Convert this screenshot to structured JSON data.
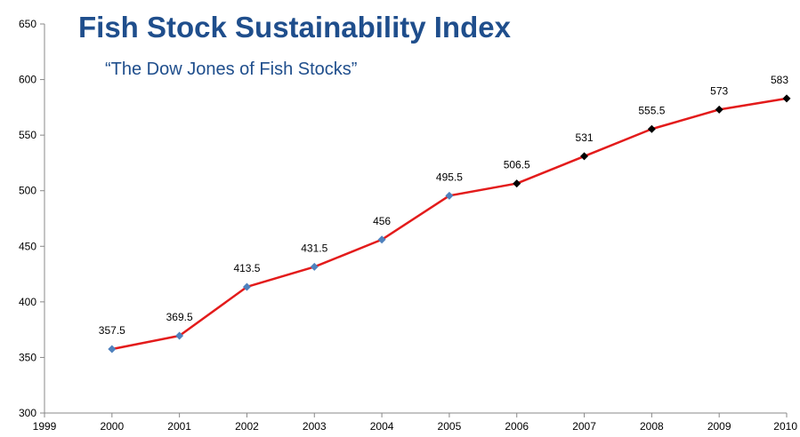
{
  "chart_data": {
    "type": "line",
    "title": "Fish Stock Sustainability Index",
    "subtitle": "“The Dow Jones of Fish Stocks”",
    "xlabel": "",
    "ylabel": "",
    "xlim": [
      1999,
      2010
    ],
    "ylim": [
      300,
      650
    ],
    "x_ticks": [
      "1999",
      "2000",
      "2001",
      "2002",
      "2003",
      "2004",
      "2005",
      "2006",
      "2007",
      "2008",
      "2009",
      "2010"
    ],
    "y_ticks": [
      "300",
      "350",
      "400",
      "450",
      "500",
      "550",
      "600",
      "650"
    ],
    "grid": false,
    "series": [
      {
        "x": [
          2000,
          2001,
          2002,
          2003,
          2004,
          2005,
          2006,
          2007,
          2008,
          2009,
          2010
        ],
        "values": [
          357.5,
          369.5,
          413.5,
          431.5,
          456,
          495.5,
          506.5,
          531,
          555.5,
          573,
          583
        ],
        "labels": [
          "357.5",
          "369.5",
          "413.5",
          "431.5",
          "456",
          "495.5",
          "506.5",
          "531",
          "555.5",
          "573",
          "583"
        ],
        "marker_colors": [
          "#4f81bd",
          "#4f81bd",
          "#4f81bd",
          "#4f81bd",
          "#4f81bd",
          "#4f81bd",
          "#000000",
          "#000000",
          "#000000",
          "#000000",
          "#000000"
        ]
      }
    ],
    "colors": {
      "line": "#e31b1b",
      "marker_blue": "#4f81bd",
      "marker_black": "#000000",
      "title": "#1f4e8c",
      "axis": "#888888"
    }
  }
}
